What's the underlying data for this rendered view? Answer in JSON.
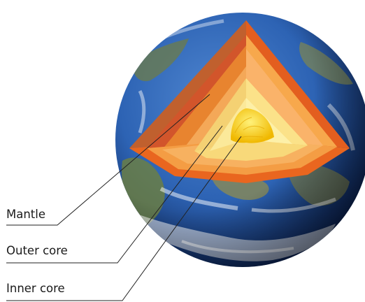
{
  "labels": {
    "mantle": "Mantle",
    "outer_core": "Outer core",
    "inner_core": "Inner core"
  },
  "colors": {
    "ocean_dark": "#0d2a66",
    "ocean": "#2d63b4",
    "land_green": "#5f7a3a",
    "land_tan": "#a89060",
    "cloud": "#ffffff",
    "crust": "#b8552a",
    "mantle_outer": "#e8642a",
    "mantle_inner": "#f7b36a",
    "outer_core": "#f9e28a",
    "inner_core": "#f5c400",
    "leader_line": "#222222"
  }
}
